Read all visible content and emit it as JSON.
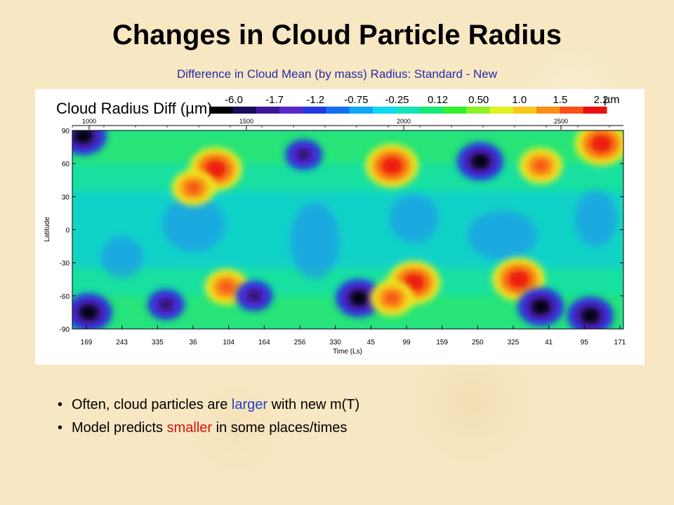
{
  "slide": {
    "title": "Changes in Cloud Particle Radius",
    "subtitle": "Difference in Cloud Mean (by mass) Radius: Standard - New"
  },
  "bullets": [
    {
      "before": "Often, cloud particles are ",
      "highlight": "larger",
      "after": " with new m(T)",
      "highlight_color": "#2440c8"
    },
    {
      "before": "Model predicts ",
      "highlight": "smaller",
      "after": " in some places/times",
      "highlight_color": "#e01010"
    }
  ],
  "chart_data": {
    "type": "heatmap",
    "title": "Cloud Radius Diff (µm)",
    "unit": "µm",
    "xlabel": "Time (Ls)",
    "ylabel": "Latitude",
    "y_ticks": [
      90,
      60,
      30,
      0,
      -30,
      -60,
      -90
    ],
    "ylim": [
      -90,
      90
    ],
    "x_tick_labels": [
      "169",
      "243",
      "335",
      "36",
      "104",
      "164",
      "256",
      "330",
      "45",
      "99",
      "159",
      "250",
      "325",
      "41",
      "95",
      "171"
    ],
    "top_axis_ticks": [
      "1000",
      "1500",
      "2000",
      "2500"
    ],
    "colorbar_labels": [
      "-6.0",
      "-1.7",
      "-1.2",
      "-0.75",
      "-0.25",
      "0.12",
      "0.50",
      "1.0",
      "1.5",
      "2.2"
    ],
    "colorbar_colors": [
      "#000000",
      "#1a0a5a",
      "#3c1896",
      "#5a28c8",
      "#2438e0",
      "#1470f0",
      "#10a8f0",
      "#10d8f0",
      "#18e0b8",
      "#18e878",
      "#30f030",
      "#90f028",
      "#e0f020",
      "#f8c818",
      "#f89018",
      "#f85018",
      "#e81010"
    ],
    "grid": false,
    "legend": "top colorbar",
    "features": [
      {
        "type": "negative",
        "x": 0.02,
        "y": 85,
        "value": -6.0
      },
      {
        "type": "positive",
        "x": 0.26,
        "y": 55,
        "value": 2.2
      },
      {
        "type": "positive",
        "x": 0.22,
        "y": 38,
        "value": 1.5
      },
      {
        "type": "negative",
        "x": 0.42,
        "y": 68,
        "value": -1.7
      },
      {
        "type": "positive",
        "x": 0.58,
        "y": 58,
        "value": 2.2
      },
      {
        "type": "negative",
        "x": 0.74,
        "y": 62,
        "value": -6.0
      },
      {
        "type": "positive",
        "x": 0.85,
        "y": 58,
        "value": 1.5
      },
      {
        "type": "positive",
        "x": 0.96,
        "y": 78,
        "value": 2.2
      },
      {
        "type": "negative",
        "x": 0.03,
        "y": -75,
        "value": -6.0
      },
      {
        "type": "negative",
        "x": 0.17,
        "y": -68,
        "value": -1.7
      },
      {
        "type": "positive",
        "x": 0.28,
        "y": -52,
        "value": 1.5
      },
      {
        "type": "negative",
        "x": 0.33,
        "y": -60,
        "value": -1.7
      },
      {
        "type": "negative",
        "x": 0.52,
        "y": -62,
        "value": -6.0
      },
      {
        "type": "positive",
        "x": 0.62,
        "y": -48,
        "value": 2.2
      },
      {
        "type": "positive",
        "x": 0.58,
        "y": -62,
        "value": 1.5
      },
      {
        "type": "positive",
        "x": 0.81,
        "y": -45,
        "value": 2.2
      },
      {
        "type": "negative",
        "x": 0.85,
        "y": -70,
        "value": -6.0
      },
      {
        "type": "negative",
        "x": 0.94,
        "y": -78,
        "value": -6.0
      }
    ]
  }
}
